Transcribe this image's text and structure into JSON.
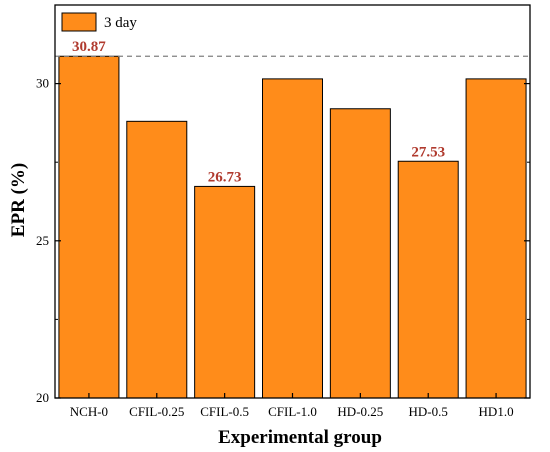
{
  "chart_data": {
    "type": "bar",
    "xlabel": "Experimental group",
    "ylabel": "EPR (%)",
    "categories": [
      "NCH-0",
      "CFIL-0.25",
      "CFIL-0.5",
      "CFIL-1.0",
      "HD-0.25",
      "HD-0.5",
      "HD1.0"
    ],
    "series": [
      {
        "name": "3 day",
        "values": [
          30.87,
          28.8,
          26.73,
          30.15,
          29.2,
          27.53,
          30.15
        ]
      }
    ],
    "data_labels": [
      "30.87",
      "",
      "26.73",
      "",
      "",
      "27.53",
      ""
    ],
    "ylim": [
      20,
      32.5
    ],
    "yticks": [
      20,
      25,
      30
    ],
    "reference_line": 30.87,
    "legend_position": "top-left",
    "grid": false,
    "colors": {
      "bar_fill": "#ff8c1a",
      "bar_stroke": "#000000",
      "label_color": "#b03a2e",
      "reference_line": "#808080"
    }
  }
}
